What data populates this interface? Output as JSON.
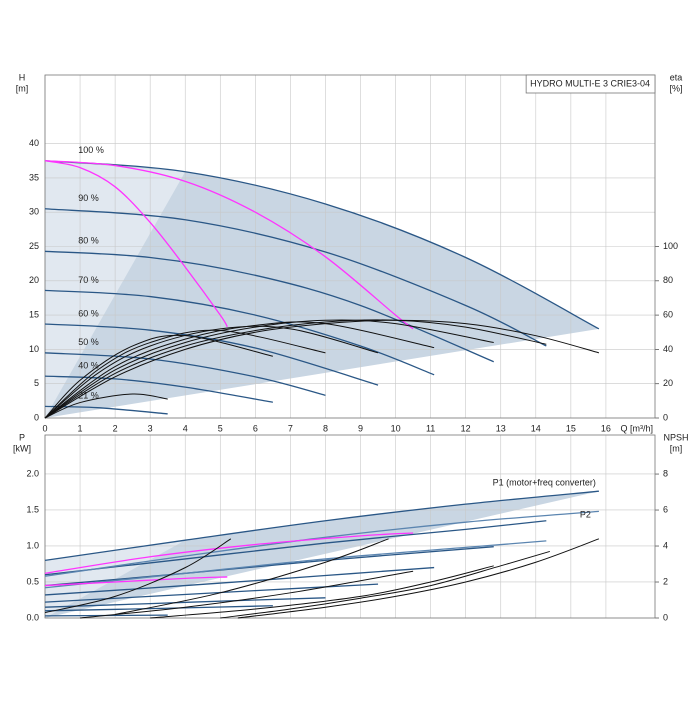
{
  "chart_data": [
    {
      "type": "line",
      "title": "HYDRO MULTI-E 3 CRIE3-04",
      "xlabel": "Q [m³/h]",
      "ylabel": [
        "H",
        "[m]"
      ],
      "y2label": [
        "eta",
        "[%]"
      ],
      "xlim": [
        0,
        17.4
      ],
      "xticks": [
        0,
        1,
        2,
        3,
        4,
        5,
        6,
        7,
        8,
        9,
        10,
        11,
        12,
        13,
        14,
        15,
        16
      ],
      "ylim": [
        0,
        50
      ],
      "yticks": [
        0,
        5,
        10,
        15,
        20,
        25,
        30,
        35,
        40
      ],
      "y2lim": [
        0,
        200
      ],
      "y2ticks": [
        0,
        20,
        40,
        60,
        80,
        100
      ],
      "grid": true,
      "shade": "#c9d6e3",
      "series": [
        {
          "name": "100 %",
          "color": "#2a5786",
          "x": [
            0,
            4,
            8,
            12,
            15.8
          ],
          "values": [
            37.5,
            35.9,
            31.2,
            23.4,
            13.0
          ]
        },
        {
          "name": "90 %",
          "color": "#2a5786",
          "x": [
            0,
            4,
            8,
            12,
            14.3
          ],
          "values": [
            30.5,
            28.9,
            24.2,
            16.4,
            10.5
          ]
        },
        {
          "name": "80 %",
          "color": "#2a5786",
          "x": [
            0,
            3,
            6,
            9,
            12.8
          ],
          "values": [
            24.3,
            23.4,
            20.8,
            16.4,
            8.2
          ]
        },
        {
          "name": "70 %",
          "color": "#2a5786",
          "x": [
            0,
            3,
            6,
            9,
            11.1
          ],
          "values": [
            18.6,
            17.7,
            15.0,
            10.5,
            6.3
          ]
        },
        {
          "name": "60 %",
          "color": "#2a5786",
          "x": [
            0,
            3,
            6,
            9.5
          ],
          "values": [
            13.7,
            12.8,
            10.2,
            4.8
          ]
        },
        {
          "name": "50 %",
          "color": "#2a5786",
          "x": [
            0,
            3,
            6,
            8
          ],
          "values": [
            9.5,
            8.6,
            6.0,
            3.3
          ]
        },
        {
          "name": "40 %",
          "color": "#2a5786",
          "x": [
            0,
            2,
            4,
            6.5
          ],
          "values": [
            6.1,
            5.7,
            4.5,
            2.3
          ]
        },
        {
          "name": "21 %",
          "color": "#2a5786",
          "x": [
            0,
            1.5,
            3.5
          ],
          "values": [
            1.7,
            1.5,
            0.6
          ]
        },
        {
          "color": "#ff33ff",
          "x": [
            0,
            1,
            2,
            3,
            4,
            5,
            5.2
          ],
          "values": [
            37.5,
            36.5,
            33.7,
            28.5,
            22,
            15,
            13.3
          ]
        },
        {
          "color": "#ff33ff",
          "x": [
            0,
            2,
            4,
            6,
            8,
            10,
            10.5
          ],
          "values": [
            37.5,
            36.8,
            34.5,
            30,
            23.5,
            15,
            13
          ]
        },
        {
          "color": "#111111",
          "axis": "y2",
          "x": [
            0,
            2,
            4,
            6,
            8,
            10,
            12,
            14,
            15.8
          ],
          "values": [
            0,
            24,
            40,
            50,
            55,
            57,
            55,
            48,
            38
          ]
        },
        {
          "color": "#111111",
          "axis": "y2",
          "x": [
            0,
            2,
            4,
            6,
            8,
            10,
            12,
            14.3
          ],
          "values": [
            0,
            26,
            42,
            51,
            56,
            57,
            53,
            43
          ]
        },
        {
          "color": "#111111",
          "axis": "y2",
          "x": [
            0,
            2,
            4,
            6,
            8,
            10,
            12.8
          ],
          "values": [
            0,
            28,
            44,
            53,
            57,
            55,
            44
          ]
        },
        {
          "color": "#111111",
          "axis": "y2",
          "x": [
            0,
            2,
            4,
            6,
            8,
            11.1
          ],
          "values": [
            0,
            30,
            46,
            54,
            55,
            41
          ]
        },
        {
          "color": "#111111",
          "axis": "y2",
          "x": [
            0,
            1.5,
            3,
            5,
            7,
            9.5
          ],
          "values": [
            0,
            26,
            42,
            52,
            52,
            38
          ]
        },
        {
          "color": "#111111",
          "axis": "y2",
          "x": [
            0,
            1.5,
            3,
            5,
            8
          ],
          "values": [
            0,
            28,
            44,
            51,
            38
          ]
        },
        {
          "color": "#111111",
          "axis": "y2",
          "x": [
            0,
            1,
            2.5,
            4,
            6.5
          ],
          "values": [
            0,
            22,
            42,
            48,
            36
          ]
        },
        {
          "color": "#111111",
          "axis": "y2",
          "x": [
            0,
            1,
            2.5,
            3.5
          ],
          "values": [
            0,
            9,
            14,
            11
          ]
        }
      ]
    },
    {
      "type": "line",
      "ylabel": [
        "P",
        "[kW]"
      ],
      "y2label": [
        "NPSH",
        "[m]"
      ],
      "xlim": [
        0,
        17.4
      ],
      "xticks": [
        0,
        1,
        2,
        3,
        4,
        5,
        6,
        7,
        8,
        9,
        10,
        11,
        12,
        13,
        14,
        15,
        16
      ],
      "xtick_labels": false,
      "ylim": [
        0,
        2.54
      ],
      "yticks": [
        {
          "value": 0,
          "label": "0.0"
        },
        0.5,
        {
          "value": 1,
          "label": "1.0"
        },
        1.5,
        {
          "value": 2,
          "label": "2.0"
        }
      ],
      "y2lim": [
        0,
        10.17
      ],
      "y2ticks": [
        0,
        2,
        4,
        6,
        8
      ],
      "grid": true,
      "shade": "#c9d6e3",
      "series": [
        {
          "name": "P1 (motor+freq converter)",
          "color": "#2a5786",
          "x": [
            0,
            4,
            8,
            12,
            15.8
          ],
          "values": [
            0.8,
            1.08,
            1.35,
            1.58,
            1.76
          ]
        },
        {
          "color": "#2a5786",
          "x": [
            0,
            4,
            8,
            12,
            14.3
          ],
          "values": [
            0.6,
            0.82,
            1.04,
            1.23,
            1.35
          ]
        },
        {
          "color": "#2a5786",
          "x": [
            0,
            4,
            8,
            12.8
          ],
          "values": [
            0.45,
            0.62,
            0.8,
            0.99
          ]
        },
        {
          "color": "#2a5786",
          "x": [
            0,
            4,
            8,
            11.1
          ],
          "values": [
            0.32,
            0.45,
            0.59,
            0.7
          ]
        },
        {
          "color": "#2a5786",
          "x": [
            0,
            3,
            6,
            9.5
          ],
          "values": [
            0.22,
            0.3,
            0.38,
            0.47
          ]
        },
        {
          "color": "#2a5786",
          "x": [
            0,
            3,
            6,
            8
          ],
          "values": [
            0.15,
            0.2,
            0.25,
            0.28
          ]
        },
        {
          "color": "#2a5786",
          "x": [
            0,
            3,
            6.5
          ],
          "values": [
            0.1,
            0.13,
            0.17
          ]
        },
        {
          "color": "#2a5786",
          "x": [
            0,
            3.5
          ],
          "values": [
            0.03,
            0.04
          ]
        },
        {
          "name": "P2",
          "color": "#5b85b0",
          "x": [
            0,
            4,
            8,
            12,
            15.8
          ],
          "values": [
            0.58,
            0.86,
            1.12,
            1.33,
            1.48
          ]
        },
        {
          "color": "#5b85b0",
          "x": [
            0,
            4,
            8,
            12,
            14.3
          ],
          "values": [
            0.42,
            0.62,
            0.82,
            0.98,
            1.07
          ]
        },
        {
          "color": "#ff33ff",
          "x": [
            0,
            3,
            6,
            9,
            10.5
          ],
          "values": [
            0.62,
            0.85,
            1.02,
            1.14,
            1.18
          ]
        },
        {
          "color": "#ff33ff",
          "x": [
            0,
            2,
            4,
            5.2
          ],
          "values": [
            0.45,
            0.5,
            0.55,
            0.57
          ]
        },
        {
          "color": "#111111",
          "axis": "y2",
          "x": [
            5.5,
            8,
            10,
            12,
            14,
            15.8
          ],
          "values": [
            0,
            0.6,
            1.2,
            2.0,
            3.1,
            4.4
          ]
        },
        {
          "color": "#111111",
          "axis": "y2",
          "x": [
            5,
            7,
            9,
            11,
            13,
            14.4
          ],
          "values": [
            0,
            0.5,
            1.1,
            1.8,
            2.9,
            3.7
          ]
        },
        {
          "color": "#111111",
          "axis": "y2",
          "x": [
            3,
            6,
            9,
            11,
            12.8
          ],
          "values": [
            0,
            0.5,
            1.2,
            2.0,
            2.9
          ]
        },
        {
          "color": "#111111",
          "axis": "y2",
          "x": [
            1,
            4,
            7,
            10.5
          ],
          "values": [
            0,
            0.6,
            1.4,
            2.6
          ]
        },
        {
          "color": "#111111",
          "axis": "y2",
          "x": [
            0,
            2,
            4,
            5.3
          ],
          "values": [
            0.3,
            1.2,
            2.8,
            4.4
          ]
        },
        {
          "color": "#111111",
          "axis": "y2",
          "x": [
            2,
            5,
            8,
            9.8
          ],
          "values": [
            0.2,
            1.4,
            3.1,
            4.4
          ]
        }
      ]
    }
  ]
}
